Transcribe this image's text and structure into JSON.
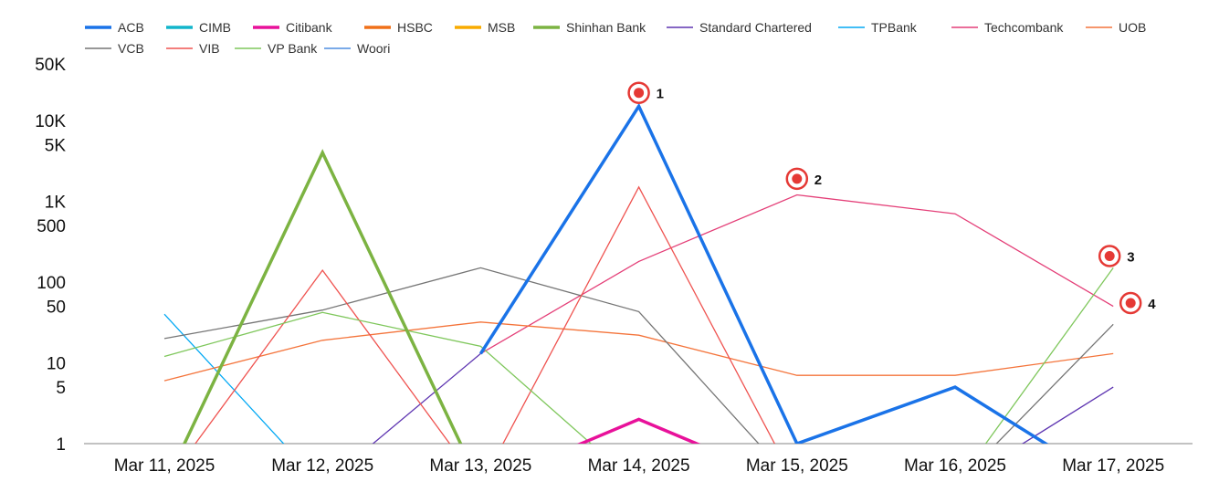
{
  "chart_data": {
    "type": "line",
    "title": "",
    "xlabel": "",
    "ylabel": "",
    "y_scale": "log",
    "ylim": [
      1,
      50000
    ],
    "grid": false,
    "legend_position": "top",
    "x": [
      "Mar 11, 2025",
      "Mar 12, 2025",
      "Mar 13, 2025",
      "Mar 14, 2025",
      "Mar 15, 2025",
      "Mar 16, 2025",
      "Mar 17, 2025"
    ],
    "y_ticks": [
      {
        "value": 1,
        "label": "1"
      },
      {
        "value": 5,
        "label": "5"
      },
      {
        "value": 10,
        "label": "10"
      },
      {
        "value": 50,
        "label": "50"
      },
      {
        "value": 100,
        "label": "100"
      },
      {
        "value": 500,
        "label": "500"
      },
      {
        "value": 1000,
        "label": "1K"
      },
      {
        "value": 5000,
        "label": "5K"
      },
      {
        "value": 10000,
        "label": "10K"
      },
      {
        "value": 50000,
        "label": "50K"
      }
    ],
    "series": [
      {
        "name": "ACB",
        "color": "#1a73e8",
        "width": 3.5,
        "values": [
          null,
          null,
          13,
          15000,
          1,
          5,
          0.3
        ]
      },
      {
        "name": "CIMB",
        "color": "#12b5cb",
        "width": 3.5,
        "values": [
          null,
          null,
          null,
          null,
          null,
          null,
          null
        ]
      },
      {
        "name": "Citibank",
        "color": "#e8119a",
        "width": 3.5,
        "values": [
          null,
          null,
          0.3,
          2,
          0.3,
          null,
          1
        ]
      },
      {
        "name": "HSBC",
        "color": "#f07019",
        "width": 3.5,
        "values": [
          null,
          null,
          null,
          null,
          null,
          null,
          null
        ]
      },
      {
        "name": "MSB",
        "color": "#f9ab00",
        "width": 3.5,
        "values": [
          null,
          null,
          null,
          null,
          null,
          null,
          null
        ]
      },
      {
        "name": "Shinhan Bank",
        "color": "#7cb342",
        "width": 3.5,
        "values": [
          0.3,
          4000,
          0.3,
          null,
          null,
          null,
          null
        ]
      },
      {
        "name": "Standard Chartered",
        "color": "#5e35b1",
        "width": 1.3,
        "values": [
          null,
          0.3,
          13,
          null,
          null,
          0.3,
          5
        ]
      },
      {
        "name": "TPBank",
        "color": "#03a9f4",
        "width": 1.3,
        "values": [
          40,
          0.3,
          null,
          null,
          null,
          null,
          null
        ]
      },
      {
        "name": "Techcombank",
        "color": "#e43f78",
        "width": 1.3,
        "values": [
          null,
          null,
          13,
          180,
          1200,
          700,
          50
        ]
      },
      {
        "name": "UOB",
        "color": "#f4743b",
        "width": 1.3,
        "values": [
          6,
          19,
          32,
          22,
          7,
          7,
          13
        ]
      },
      {
        "name": "VCB",
        "color": "#757575",
        "width": 1.3,
        "values": [
          20,
          45,
          150,
          43,
          0.3,
          0.3,
          30
        ]
      },
      {
        "name": "VIB",
        "color": "#ef5350",
        "width": 1.3,
        "values": [
          0.3,
          140,
          0.3,
          1500,
          0.3,
          null,
          null
        ]
      },
      {
        "name": "VP Bank",
        "color": "#7fc75c",
        "width": 1.3,
        "values": [
          12,
          42,
          16,
          0.3,
          null,
          0.3,
          150
        ]
      },
      {
        "name": "Woori",
        "color": "#4f8ee0",
        "width": 1.3,
        "values": [
          null,
          null,
          null,
          null,
          null,
          null,
          null
        ]
      }
    ],
    "annotations": [
      {
        "label": "1",
        "x_index": 3,
        "y": 22000
      },
      {
        "label": "2",
        "x_index": 4,
        "y": 1900
      },
      {
        "label": "3",
        "x_index": 6,
        "y": 210
      },
      {
        "label": "4",
        "x_index": 6,
        "y": 55
      }
    ]
  }
}
